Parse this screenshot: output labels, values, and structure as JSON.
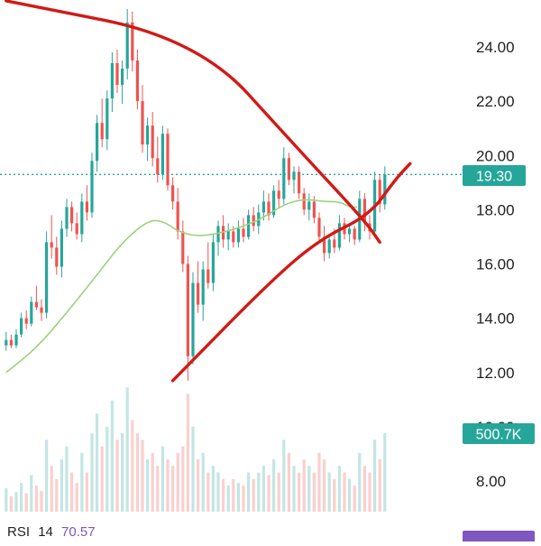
{
  "chart_data": {
    "type": "candlestick",
    "y_axis": {
      "ticks": [
        "24.00",
        "22.00",
        "20.00",
        "18.00",
        "16.00",
        "14.00",
        "12.00",
        "10.00",
        "8.00"
      ],
      "range": [
        7.4,
        25.8
      ],
      "position": "right"
    },
    "price_label": "19.30",
    "last_price": 19.3,
    "volume_label": "500.7K",
    "moving_average_color": "#9bd37c",
    "trendline_color": "#d11a16",
    "up_color": "#26a69a",
    "down_color": "#ef5350",
    "last_price_line": "dotted",
    "indicator": {
      "name": "RSI",
      "period": "14",
      "value": "70.57",
      "badge_color": "#7e57c2"
    },
    "trendlines": [
      {
        "name": "descending-resistance",
        "points": [
          [
            0,
            25.7
          ],
          [
            38,
            24.3
          ],
          [
            58,
            20.2
          ],
          [
            71,
            17.6
          ],
          [
            74,
            16.8
          ]
        ]
      },
      {
        "name": "ascending-support",
        "points": [
          [
            33,
            11.7
          ],
          [
            52,
            15.3
          ],
          [
            62,
            16.9
          ],
          [
            72,
            17.8
          ],
          [
            77,
            19.1
          ],
          [
            80,
            19.7
          ]
        ]
      }
    ],
    "moving_average": [
      [
        0,
        12.0
      ],
      [
        6,
        12.9
      ],
      [
        12,
        14.2
      ],
      [
        18,
        15.6
      ],
      [
        23,
        16.8
      ],
      [
        28,
        17.6
      ],
      [
        31,
        17.6
      ],
      [
        34,
        17.2
      ],
      [
        38,
        17.0
      ],
      [
        44,
        17.2
      ],
      [
        50,
        17.6
      ],
      [
        55,
        18.2
      ],
      [
        59,
        18.4
      ],
      [
        63,
        18.3
      ],
      [
        66,
        18.3
      ],
      [
        68,
        18.1
      ],
      [
        69.5,
        18.1
      ]
    ],
    "candles": [
      [
        13.0,
        13.5,
        12.8,
        13.2
      ],
      [
        13.2,
        13.4,
        12.9,
        13.0
      ],
      [
        13.0,
        13.6,
        12.9,
        13.4
      ],
      [
        13.4,
        14.2,
        13.3,
        14.0
      ],
      [
        14.0,
        14.3,
        13.6,
        13.8
      ],
      [
        13.8,
        14.8,
        13.7,
        14.6
      ],
      [
        14.6,
        15.2,
        14.3,
        14.4
      ],
      [
        14.4,
        14.7,
        13.9,
        14.2
      ],
      [
        14.2,
        17.2,
        14.0,
        16.8
      ],
      [
        16.8,
        17.8,
        16.2,
        16.6
      ],
      [
        16.6,
        17.0,
        15.6,
        15.9
      ],
      [
        15.9,
        17.6,
        15.5,
        17.3
      ],
      [
        17.3,
        18.4,
        17.0,
        18.1
      ],
      [
        18.1,
        18.3,
        17.2,
        17.5
      ],
      [
        17.5,
        17.9,
        16.9,
        17.1
      ],
      [
        17.1,
        18.6,
        16.8,
        18.3
      ],
      [
        18.3,
        18.9,
        17.6,
        17.9
      ],
      [
        17.9,
        20.1,
        17.7,
        19.8
      ],
      [
        19.8,
        21.5,
        19.4,
        21.2
      ],
      [
        21.2,
        22.1,
        20.3,
        20.6
      ],
      [
        20.6,
        22.4,
        20.2,
        22.1
      ],
      [
        22.1,
        23.8,
        21.6,
        23.4
      ],
      [
        23.4,
        23.9,
        22.3,
        22.6
      ],
      [
        22.6,
        23.5,
        21.9,
        23.2
      ],
      [
        23.2,
        25.4,
        22.8,
        24.9
      ],
      [
        24.9,
        25.3,
        23.1,
        23.5
      ],
      [
        23.5,
        23.9,
        21.7,
        22.0
      ],
      [
        22.0,
        22.6,
        20.1,
        20.4
      ],
      [
        20.4,
        21.4,
        19.8,
        21.1
      ],
      [
        21.1,
        21.6,
        19.6,
        19.9
      ],
      [
        19.9,
        20.7,
        19.0,
        19.3
      ],
      [
        19.3,
        21.1,
        19.1,
        20.8
      ],
      [
        20.8,
        21.0,
        18.7,
        18.9
      ],
      [
        18.9,
        19.2,
        18.0,
        18.3
      ],
      [
        18.3,
        18.8,
        16.9,
        17.2
      ],
      [
        17.2,
        17.6,
        15.7,
        16.0
      ],
      [
        16.0,
        16.3,
        11.7,
        12.6
      ],
      [
        12.6,
        15.7,
        12.3,
        15.3
      ],
      [
        15.3,
        16.1,
        14.2,
        14.5
      ],
      [
        14.5,
        16.1,
        13.9,
        15.8
      ],
      [
        15.8,
        16.8,
        15.1,
        15.3
      ],
      [
        15.3,
        17.1,
        15.0,
        16.8
      ],
      [
        16.8,
        17.6,
        16.3,
        17.4
      ],
      [
        17.4,
        17.8,
        16.6,
        16.9
      ],
      [
        16.9,
        17.5,
        16.5,
        17.2
      ],
      [
        17.2,
        17.4,
        16.6,
        16.8
      ],
      [
        16.8,
        17.6,
        16.6,
        17.3
      ],
      [
        17.3,
        17.7,
        16.8,
        17.0
      ],
      [
        17.0,
        18.0,
        16.9,
        17.8
      ],
      [
        17.8,
        18.1,
        17.2,
        17.4
      ],
      [
        17.4,
        18.2,
        17.1,
        17.9
      ],
      [
        17.9,
        18.7,
        17.6,
        18.3
      ],
      [
        18.3,
        18.6,
        17.6,
        17.8
      ],
      [
        17.8,
        18.9,
        17.7,
        18.7
      ],
      [
        18.7,
        19.1,
        18.1,
        18.4
      ],
      [
        18.4,
        20.3,
        18.2,
        19.9
      ],
      [
        19.9,
        20.1,
        18.9,
        19.1
      ],
      [
        19.1,
        19.6,
        18.6,
        19.4
      ],
      [
        19.4,
        19.6,
        18.4,
        18.6
      ],
      [
        18.6,
        18.8,
        17.8,
        18.0
      ],
      [
        18.0,
        18.6,
        17.6,
        18.3
      ],
      [
        18.3,
        18.5,
        17.5,
        17.7
      ],
      [
        17.7,
        17.9,
        16.8,
        17.0
      ],
      [
        17.0,
        17.4,
        16.1,
        16.4
      ],
      [
        16.4,
        17.1,
        16.2,
        16.9
      ],
      [
        16.9,
        17.3,
        16.4,
        16.6
      ],
      [
        16.6,
        17.8,
        16.5,
        17.5
      ],
      [
        17.5,
        17.7,
        16.9,
        17.1
      ],
      [
        17.1,
        17.5,
        16.8,
        17.3
      ],
      [
        17.3,
        17.4,
        16.7,
        16.9
      ],
      [
        16.9,
        18.7,
        16.8,
        18.4
      ],
      [
        18.4,
        18.6,
        17.2,
        17.5
      ],
      [
        17.5,
        17.8,
        16.9,
        17.2
      ],
      [
        17.2,
        19.4,
        17.1,
        19.1
      ],
      [
        19.1,
        19.3,
        17.9,
        18.2
      ],
      [
        18.2,
        19.6,
        18.0,
        19.3
      ]
    ],
    "volumes": [
      0.18,
      0.12,
      0.15,
      0.22,
      0.14,
      0.28,
      0.2,
      0.16,
      0.55,
      0.35,
      0.25,
      0.4,
      0.5,
      0.3,
      0.22,
      0.45,
      0.3,
      0.6,
      0.75,
      0.5,
      0.65,
      0.85,
      0.55,
      0.6,
      0.95,
      0.7,
      0.6,
      0.55,
      0.4,
      0.45,
      0.35,
      0.5,
      0.4,
      0.35,
      0.45,
      0.5,
      0.9,
      0.65,
      0.4,
      0.45,
      0.3,
      0.35,
      0.3,
      0.25,
      0.2,
      0.25,
      0.22,
      0.2,
      0.3,
      0.25,
      0.3,
      0.35,
      0.28,
      0.4,
      0.3,
      0.55,
      0.45,
      0.35,
      0.3,
      0.4,
      0.35,
      0.3,
      0.45,
      0.4,
      0.3,
      0.25,
      0.35,
      0.3,
      0.25,
      0.2,
      0.45,
      0.35,
      0.3,
      0.55,
      0.4,
      0.6
    ]
  }
}
